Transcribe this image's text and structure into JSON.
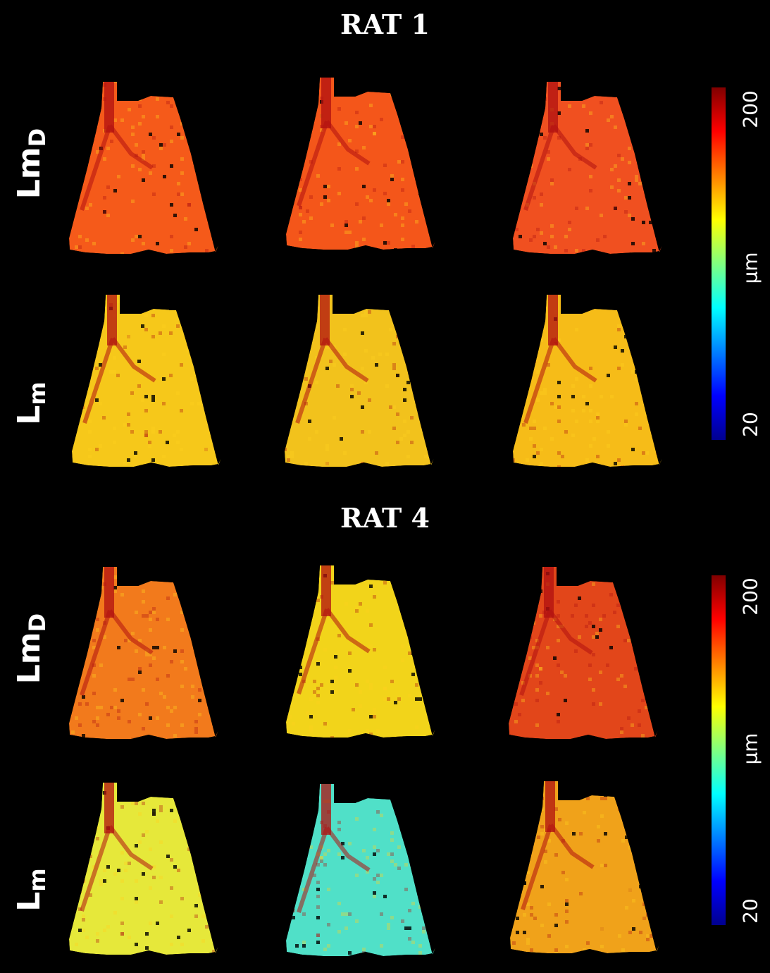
{
  "figure": {
    "panels": [
      {
        "title": "RAT 1",
        "rows": [
          {
            "label_main": "Lm",
            "label_sub": "D",
            "maps": [
              "lmd-ctrl",
              "lmd-mid",
              "lmd-end"
            ]
          },
          {
            "label_main": "L",
            "label_sub": "m",
            "maps": [
              "lm-ctrl",
              "lm-mid",
              "lm-end"
            ]
          }
        ],
        "colorbar": {
          "max_label": "200",
          "min_label": "20",
          "unit": "μm"
        }
      },
      {
        "title": "RAT 4",
        "rows": [
          {
            "label_main": "Lm",
            "label_sub": "D",
            "maps": [
              "lmd-ctrl",
              "lmd-mid",
              "lmd-end"
            ]
          },
          {
            "label_main": "L",
            "label_sub": "m",
            "maps": [
              "lm-ctrl",
              "lm-mid",
              "lm-end"
            ]
          }
        ],
        "colorbar": {
          "max_label": "200",
          "min_label": "20",
          "unit": "μm"
        }
      }
    ],
    "colormap": [
      "#00008f",
      "#0000ff",
      "#0080ff",
      "#00ffff",
      "#80ff80",
      "#ffff00",
      "#ff8000",
      "#ff0000",
      "#800000"
    ],
    "map_colors": {
      "rat1_lmd": [
        "#f55a1a",
        "#f4561a",
        "#f05020"
      ],
      "rat1_lm": [
        "#f6c81a",
        "#f2c21c",
        "#f6bc18"
      ],
      "rat4_lmd": [
        "#f27a1c",
        "#f2d41a",
        "#e2461a"
      ],
      "rat4_lm": [
        "#e6e83a",
        "#50e0c8",
        "#f0a21a"
      ]
    },
    "vessel_color": "#b01010"
  }
}
